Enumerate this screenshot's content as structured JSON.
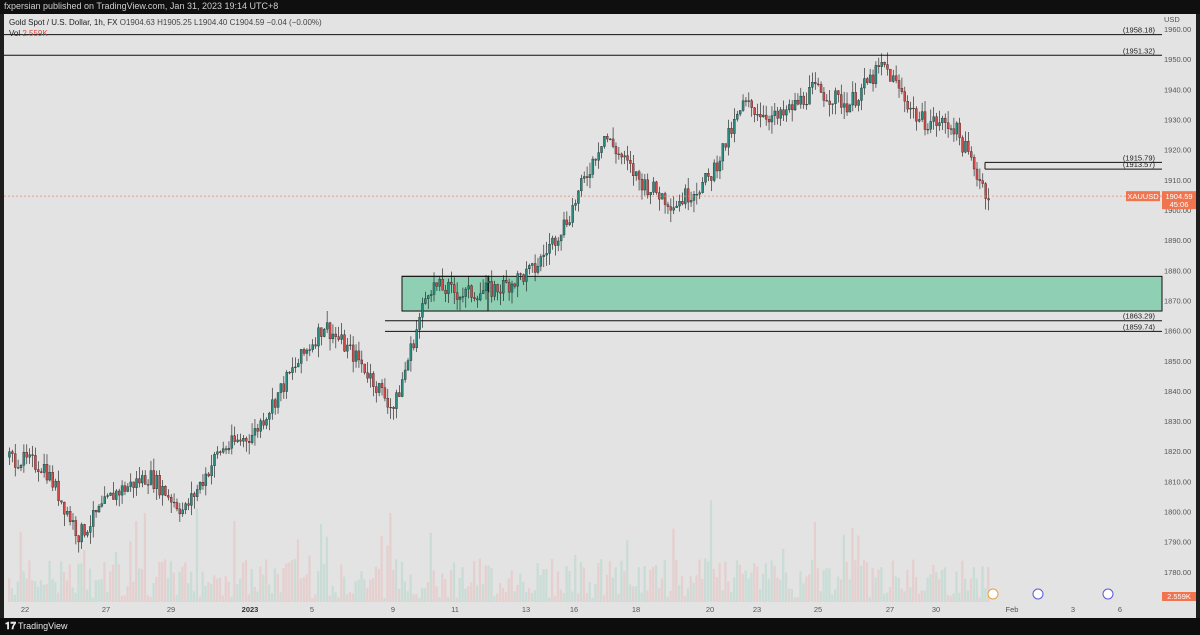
{
  "header": {
    "published": "fxpersian published on TradingView.com, Jan 31, 2023 19:14 UTC+8"
  },
  "legend": {
    "symbol": "Gold Spot / U.S. Dollar, 1h, FX",
    "ohlc": "O1904.63  H1905.25  L1904.40  C1904.59  −0.04 (−0.00%)",
    "vol_label": "Vol",
    "vol_value": "2.559K"
  },
  "footer": {
    "logo": "𝟏𝟕",
    "brand": "TradingView"
  },
  "colors": {
    "up": "#2b8a7e",
    "down": "#d14a4a",
    "zone_fill": "#8fcfb3",
    "bg": "#e3e3e3",
    "price_tag": "#f0744e"
  },
  "chart_data": {
    "type": "candlestick",
    "symbol": "XAUUSD",
    "timeframe": "1h",
    "currency_label": "USD",
    "y_range": [
      1770,
      1965
    ],
    "y_ticks": [
      1780,
      1790,
      1800,
      1810,
      1820,
      1830,
      1840,
      1850,
      1860,
      1870,
      1880,
      1890,
      1900,
      1910,
      1920,
      1930,
      1940,
      1950,
      1960
    ],
    "x_ticks": [
      "22",
      "27",
      "29",
      "2023",
      "5",
      "9",
      "11",
      "13",
      "16",
      "18",
      "20",
      "23",
      "25",
      "27",
      "30",
      "Feb",
      "3",
      "6"
    ],
    "price_path": [
      {
        "t": "Dec 22",
        "v": 1818
      },
      {
        "t": "Dec 23",
        "v": 1815
      },
      {
        "t": "Dec 26",
        "v": 1792
      },
      {
        "t": "Dec 27",
        "v": 1806
      },
      {
        "t": "Dec 28",
        "v": 1812
      },
      {
        "t": "Dec 29",
        "v": 1800
      },
      {
        "t": "Dec 30",
        "v": 1820
      },
      {
        "t": "Jan 2",
        "v": 1826
      },
      {
        "t": "Jan 3",
        "v": 1845
      },
      {
        "t": "Jan 4",
        "v": 1862
      },
      {
        "t": "Jan 5",
        "v": 1850
      },
      {
        "t": "Jan 6",
        "v": 1834
      },
      {
        "t": "Jan 9",
        "v": 1875
      },
      {
        "t": "Jan 10",
        "v": 1872
      },
      {
        "t": "Jan 11",
        "v": 1874
      },
      {
        "t": "Jan 12",
        "v": 1880
      },
      {
        "t": "Jan 13",
        "v": 1898
      },
      {
        "t": "Jan 16",
        "v": 1925
      },
      {
        "t": "Jan 17",
        "v": 1910
      },
      {
        "t": "Jan 18",
        "v": 1902
      },
      {
        "t": "Jan 19",
        "v": 1910
      },
      {
        "t": "Jan 20",
        "v": 1935
      },
      {
        "t": "Jan 23",
        "v": 1930
      },
      {
        "t": "Jan 24",
        "v": 1940
      },
      {
        "t": "Jan 25",
        "v": 1935
      },
      {
        "t": "Jan 26",
        "v": 1948
      },
      {
        "t": "Jan 27",
        "v": 1930
      },
      {
        "t": "Jan 30",
        "v": 1928
      },
      {
        "t": "Jan 31",
        "v": 1904.59
      }
    ],
    "levels": [
      {
        "label": "(1958.18)",
        "value": 1958.18
      },
      {
        "label": "(1951.32)",
        "value": 1951.32
      },
      {
        "label": "(1915.79)",
        "value": 1915.79
      },
      {
        "label": "(1913.57)",
        "value": 1913.57
      },
      {
        "label": "(1863.29)",
        "value": 1863.29
      },
      {
        "label": "(1859.74)",
        "value": 1859.74
      }
    ],
    "demand_zone": {
      "top": 1878,
      "bottom": 1866.5
    },
    "last_price": {
      "symbol": "XAUUSD",
      "value": "1904.59",
      "countdown": "45:06"
    },
    "volume_last": "2.559K"
  }
}
